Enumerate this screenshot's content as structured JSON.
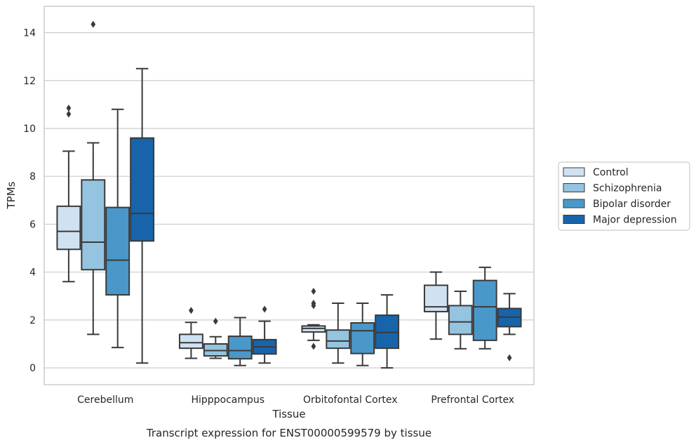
{
  "caption": "Transcript expression for ENST00000599579 by tissue",
  "colors": {
    "Control": "#d0e1f2",
    "Schizophrenia": "#94c4df",
    "Bipolar disorder": "#4a98c9",
    "Major depression": "#1764ab",
    "grid": "#cccccc",
    "stroke": "#3a3a3a"
  },
  "chart_data": {
    "type": "box",
    "xlabel": "Tissue",
    "ylabel": "TPMs",
    "ylim": [
      -0.7,
      15.1
    ],
    "yticks": [
      0,
      2,
      4,
      6,
      8,
      10,
      12,
      14
    ],
    "grid": "horizontal",
    "legend_position": "right",
    "categories": [
      "Cerebellum",
      "Hipppocampus",
      "Orbitofontal Cortex",
      "Prefrontal Cortex"
    ],
    "series": [
      {
        "name": "Control",
        "boxes": [
          {
            "whisker_low": 3.6,
            "q1": 4.95,
            "median": 5.7,
            "q3": 6.75,
            "whisker_high": 9.05,
            "outliers": [
              10.6,
              10.85
            ]
          },
          {
            "whisker_low": 0.4,
            "q1": 0.82,
            "median": 1.05,
            "q3": 1.4,
            "whisker_high": 1.9,
            "outliers": [
              2.4
            ]
          },
          {
            "whisker_low": 1.15,
            "q1": 1.5,
            "median": 1.65,
            "q3": 1.75,
            "whisker_high": 1.8,
            "outliers": [
              0.9,
              2.6,
              2.7,
              3.2
            ]
          },
          {
            "whisker_low": 1.2,
            "q1": 2.35,
            "median": 2.55,
            "q3": 3.45,
            "whisker_high": 4.0,
            "outliers": []
          }
        ]
      },
      {
        "name": "Schizophrenia",
        "boxes": [
          {
            "whisker_low": 1.4,
            "q1": 4.1,
            "median": 5.25,
            "q3": 7.85,
            "whisker_high": 9.4,
            "outliers": [
              14.35
            ]
          },
          {
            "whisker_low": 0.4,
            "q1": 0.5,
            "median": 0.72,
            "q3": 1.0,
            "whisker_high": 1.3,
            "outliers": [
              1.95
            ]
          },
          {
            "whisker_low": 0.2,
            "q1": 0.82,
            "median": 1.12,
            "q3": 1.58,
            "whisker_high": 2.7,
            "outliers": []
          },
          {
            "whisker_low": 0.8,
            "q1": 1.4,
            "median": 1.92,
            "q3": 2.6,
            "whisker_high": 3.2,
            "outliers": []
          }
        ]
      },
      {
        "name": "Bipolar disorder",
        "boxes": [
          {
            "whisker_low": 0.85,
            "q1": 3.05,
            "median": 4.5,
            "q3": 6.7,
            "whisker_high": 10.8,
            "outliers": []
          },
          {
            "whisker_low": 0.1,
            "q1": 0.38,
            "median": 0.72,
            "q3": 1.32,
            "whisker_high": 2.1,
            "outliers": []
          },
          {
            "whisker_low": 0.1,
            "q1": 0.6,
            "median": 1.55,
            "q3": 1.88,
            "whisker_high": 2.7,
            "outliers": []
          },
          {
            "whisker_low": 0.8,
            "q1": 1.15,
            "median": 2.55,
            "q3": 3.65,
            "whisker_high": 4.2,
            "outliers": []
          }
        ]
      },
      {
        "name": "Major depression",
        "boxes": [
          {
            "whisker_low": 0.2,
            "q1": 5.3,
            "median": 6.45,
            "q3": 9.6,
            "whisker_high": 12.5,
            "outliers": []
          },
          {
            "whisker_low": 0.2,
            "q1": 0.58,
            "median": 0.88,
            "q3": 1.18,
            "whisker_high": 1.95,
            "outliers": [
              2.45
            ]
          },
          {
            "whisker_low": 0.0,
            "q1": 0.82,
            "median": 1.48,
            "q3": 2.2,
            "whisker_high": 3.05,
            "outliers": []
          },
          {
            "whisker_low": 1.4,
            "q1": 1.72,
            "median": 2.12,
            "q3": 2.48,
            "whisker_high": 3.1,
            "outliers": [
              0.42
            ]
          }
        ]
      }
    ]
  }
}
